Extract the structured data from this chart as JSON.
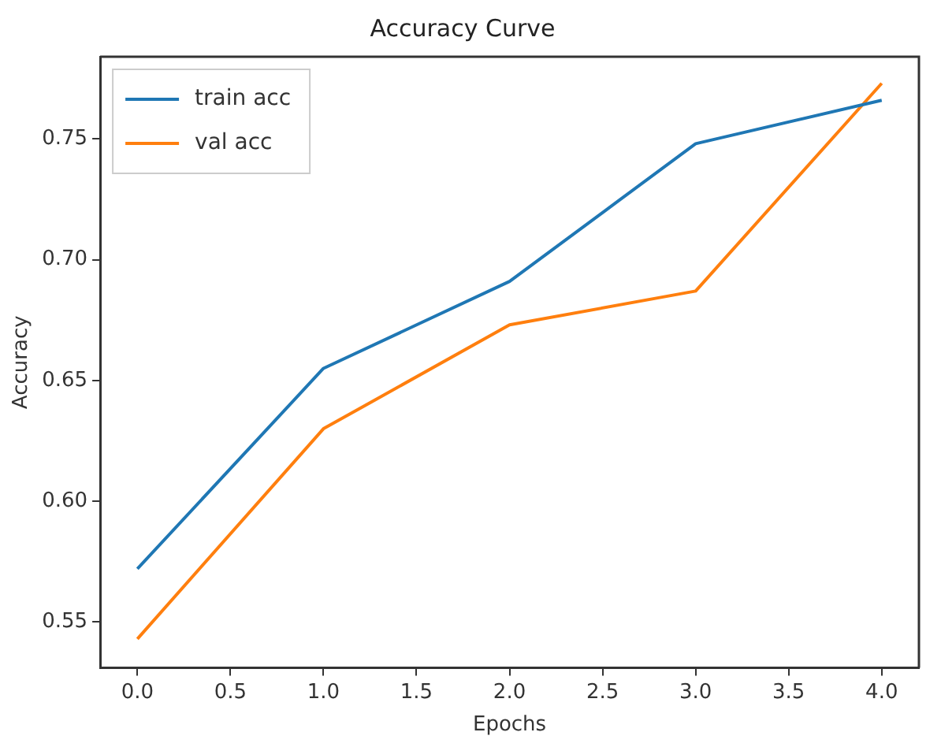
{
  "chart_data": {
    "type": "line",
    "title": "Accuracy Curve",
    "xlabel": "Epochs",
    "ylabel": "Accuracy",
    "x": [
      0,
      1,
      2,
      3,
      4
    ],
    "series": [
      {
        "name": "train acc",
        "color": "#1f77b4",
        "values": [
          0.572,
          0.655,
          0.691,
          0.748,
          0.766
        ]
      },
      {
        "name": "val acc",
        "color": "#ff7f0e",
        "values": [
          0.543,
          0.63,
          0.673,
          0.687,
          0.773
        ]
      }
    ],
    "xlim": [
      -0.2,
      4.2
    ],
    "xticks": [
      {
        "value": 0,
        "label": "0.0"
      },
      {
        "value": 0.5,
        "label": "0.5"
      },
      {
        "value": 1,
        "label": "1.0"
      },
      {
        "value": 1.5,
        "label": "1.5"
      },
      {
        "value": 2,
        "label": "2.0"
      },
      {
        "value": 2.5,
        "label": "2.5"
      },
      {
        "value": 3,
        "label": "3.0"
      },
      {
        "value": 3.5,
        "label": "3.5"
      },
      {
        "value": 4,
        "label": "4.0"
      }
    ],
    "ylim": [
      0.531,
      0.784
    ],
    "yticks": [
      0.55,
      {
        "value": 0.6,
        "label": "0.60"
      },
      0.65,
      {
        "value": 0.7,
        "label": "0.70"
      },
      0.75
    ],
    "grid": false,
    "legend": "top left",
    "marker": "none",
    "line_style": "solid"
  }
}
